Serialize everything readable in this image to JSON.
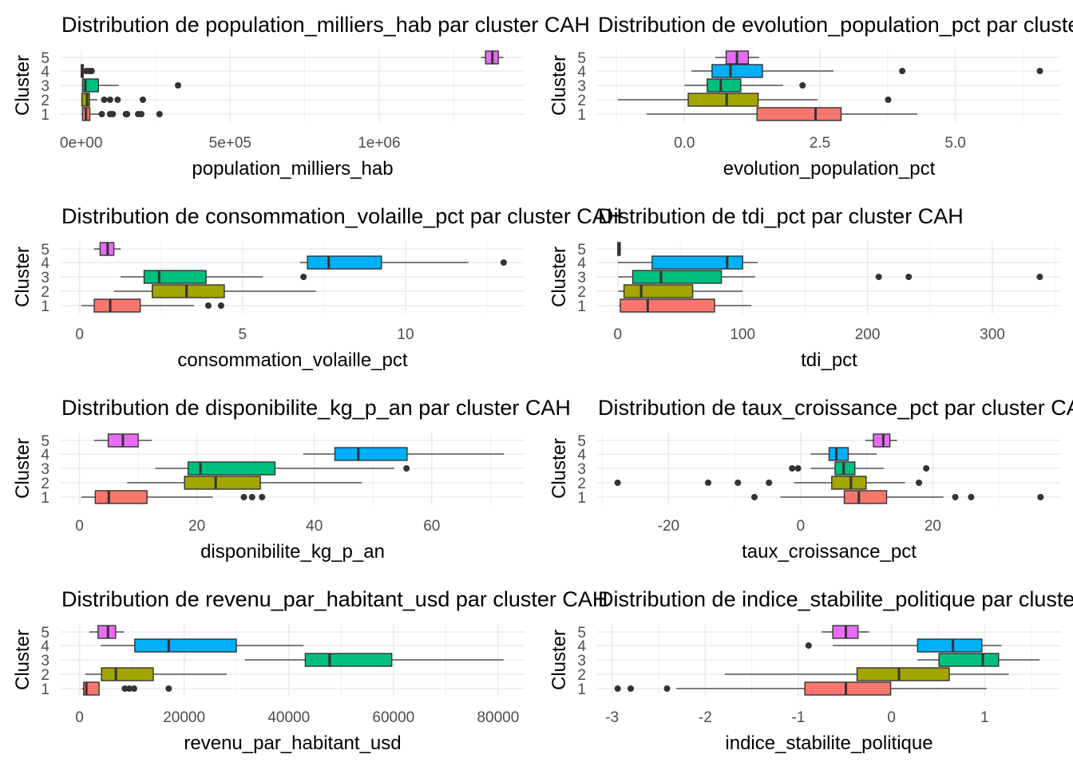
{
  "chart_data": [
    {
      "type": "boxplot",
      "title": "Distribution de population_milliers_hab par cluster CAH",
      "xlabel": "population_milliers_hab",
      "ylabel": "Cluster",
      "xlim": [
        -69000,
        1488000
      ],
      "xticks": [
        0,
        500000,
        1000000
      ],
      "xtick_labels": [
        "0e+00",
        "5e+05",
        "1e+06"
      ],
      "clusters": [
        {
          "cluster": "1",
          "whisker_low": 0,
          "q1": 4600,
          "median": 16000,
          "q3": 28800,
          "whisker_high": 60000,
          "outliers": [
            69000,
            96800,
            106000,
            150000,
            154000,
            191000,
            201600,
            262700
          ]
        },
        {
          "cluster": "2",
          "whisker_low": 0,
          "q1": 2300,
          "median": 19600,
          "q3": 27600,
          "whisker_high": 54000,
          "outliers": [
            77000,
            96800,
            122000,
            207000
          ]
        },
        {
          "cluster": "3",
          "whisker_low": 500,
          "q1": 4600,
          "median": 14000,
          "q3": 57600,
          "whisker_high": 125600,
          "outliers": [
            325000
          ]
        },
        {
          "cluster": "4",
          "whisker_low": 0,
          "q1": 0,
          "median": 2000,
          "q3": 7000,
          "whisker_high": 9000,
          "outliers": [
            17000,
            28000,
            35000
          ]
        },
        {
          "cluster": "5",
          "whisker_low": 1342000,
          "q1": 1357000,
          "median": 1380000,
          "q3": 1400000,
          "whisker_high": 1417000,
          "outliers": []
        }
      ]
    },
    {
      "type": "boxplot",
      "title": "Distribution de evolution_population_pct par cluster CAH",
      "xlabel": "evolution_population_pct",
      "ylabel": "Cluster",
      "xlim": [
        -1.61,
        6.95
      ],
      "xticks": [
        0,
        2.5,
        5
      ],
      "xtick_labels": [
        "0.0",
        "2.5",
        "5.0"
      ],
      "clusters": [
        {
          "cluster": "1",
          "whisker_low": -0.7,
          "q1": 1.34,
          "median": 2.42,
          "q3": 2.89,
          "whisker_high": 4.3,
          "outliers": []
        },
        {
          "cluster": "2",
          "whisker_low": -1.23,
          "q1": 0.07,
          "median": 0.78,
          "q3": 1.36,
          "whisker_high": 2.46,
          "outliers": [
            3.76
          ]
        },
        {
          "cluster": "3",
          "whisker_low": 0.0,
          "q1": 0.42,
          "median": 0.67,
          "q3": 1.04,
          "whisker_high": 1.82,
          "outliers": [
            2.18
          ]
        },
        {
          "cluster": "4",
          "whisker_low": 0.13,
          "q1": 0.51,
          "median": 0.85,
          "q3": 1.44,
          "whisker_high": 2.75,
          "outliers": [
            4.02,
            6.56
          ]
        },
        {
          "cluster": "5",
          "whisker_low": 0.57,
          "q1": 0.77,
          "median": 0.97,
          "q3": 1.18,
          "whisker_high": 1.38,
          "outliers": []
        }
      ]
    },
    {
      "type": "boxplot",
      "title": "Distribution de consommation_volaille_pct par cluster CAH",
      "xlabel": "consommation_volaille_pct",
      "ylabel": "Cluster",
      "xlim": [
        -0.58,
        13.65
      ],
      "xticks": [
        0,
        5,
        10
      ],
      "xtick_labels": [
        "0",
        "5",
        "10"
      ],
      "clusters": [
        {
          "cluster": "1",
          "whisker_low": 0.05,
          "q1": 0.45,
          "median": 0.94,
          "q3": 1.86,
          "whisker_high": 3.51,
          "outliers": [
            3.95,
            4.34
          ]
        },
        {
          "cluster": "2",
          "whisker_low": 1.06,
          "q1": 2.23,
          "median": 3.28,
          "q3": 4.44,
          "whisker_high": 7.25,
          "outliers": []
        },
        {
          "cluster": "3",
          "whisker_low": 1.26,
          "q1": 1.98,
          "median": 2.44,
          "q3": 3.88,
          "whisker_high": 5.62,
          "outliers": [
            6.87
          ]
        },
        {
          "cluster": "4",
          "whisker_low": 6.76,
          "q1": 6.99,
          "median": 7.64,
          "q3": 9.26,
          "whisker_high": 11.93,
          "outliers": [
            13.01
          ]
        },
        {
          "cluster": "5",
          "whisker_low": 0.44,
          "q1": 0.63,
          "median": 0.86,
          "q3": 1.05,
          "whisker_high": 1.26,
          "outliers": []
        }
      ]
    },
    {
      "type": "boxplot",
      "title": "Distribution de tdi_pct par cluster CAH",
      "xlabel": "tdi_pct",
      "ylabel": "Cluster",
      "xlim": [
        -16.5,
        355
      ],
      "xticks": [
        0,
        100,
        200,
        300
      ],
      "xtick_labels": [
        "0",
        "100",
        "200",
        "300"
      ],
      "clusters": [
        {
          "cluster": "1",
          "whisker_low": 1,
          "q1": 2,
          "median": 24,
          "q3": 77.5,
          "whisker_high": 107,
          "outliers": []
        },
        {
          "cluster": "2",
          "whisker_low": 0.5,
          "q1": 5,
          "median": 18.7,
          "q3": 60,
          "whisker_high": 100,
          "outliers": []
        },
        {
          "cluster": "3",
          "whisker_low": 0.5,
          "q1": 12,
          "median": 34.6,
          "q3": 83,
          "whisker_high": 110,
          "outliers": [
            209,
            233,
            338
          ]
        },
        {
          "cluster": "4",
          "whisker_low": 0,
          "q1": 27.5,
          "median": 87.6,
          "q3": 100,
          "whisker_high": 112,
          "outliers": []
        },
        {
          "cluster": "5",
          "whisker_low": 0,
          "q1": 0,
          "median": 1,
          "q3": 2,
          "whisker_high": 2,
          "outliers": []
        }
      ]
    },
    {
      "type": "boxplot",
      "title": "Distribution de disponibilite_kg_p_an par cluster CAH",
      "xlabel": "disponibilite_kg_p_an",
      "ylabel": "Cluster",
      "xlim": [
        -3.2,
        75.8
      ],
      "xticks": [
        0,
        20,
        40,
        60
      ],
      "xtick_labels": [
        "0",
        "20",
        "40",
        "60"
      ],
      "clusters": [
        {
          "cluster": "1",
          "whisker_low": 0.3,
          "q1": 2.7,
          "median": 5.0,
          "q3": 11.5,
          "whisker_high": 22.7,
          "outliers": [
            28.0,
            29.4,
            31.1
          ]
        },
        {
          "cluster": "2",
          "whisker_low": 8.1,
          "q1": 17.9,
          "median": 23.2,
          "q3": 30.8,
          "whisker_high": 48.1,
          "outliers": []
        },
        {
          "cluster": "3",
          "whisker_low": 12.9,
          "q1": 18.5,
          "median": 20.6,
          "q3": 33.3,
          "whisker_high": 53.6,
          "outliers": [
            55.7
          ]
        },
        {
          "cluster": "4",
          "whisker_low": 38.1,
          "q1": 43.5,
          "median": 47.5,
          "q3": 55.8,
          "whisker_high": 72.3,
          "outliers": []
        },
        {
          "cluster": "5",
          "whisker_low": 2.45,
          "q1": 4.9,
          "median": 7.4,
          "q3": 10.0,
          "whisker_high": 12.3,
          "outliers": []
        }
      ]
    },
    {
      "type": "boxplot",
      "title": "Distribution de taux_croissance_pct par cluster CAH",
      "xlabel": "taux_croissance_pct",
      "ylabel": "Cluster",
      "xlim": [
        -30.8,
        39.4
      ],
      "xticks": [
        -20,
        0,
        20
      ],
      "xtick_labels": [
        "-20",
        "0",
        "20"
      ],
      "clusters": [
        {
          "cluster": "1",
          "whisker_low": -3.1,
          "q1": 6.6,
          "median": 8.8,
          "q3": 13.0,
          "whisker_high": 21.6,
          "outliers": [
            -7.0,
            23.4,
            25.8,
            36.3
          ]
        },
        {
          "cluster": "2",
          "whisker_low": -1.0,
          "q1": 4.7,
          "median": 7.6,
          "q3": 9.9,
          "whisker_high": 15.8,
          "outliers": [
            -27.7,
            -14.0,
            -9.5,
            -4.8,
            17.9
          ]
        },
        {
          "cluster": "3",
          "whisker_low": 1.5,
          "q1": 5.2,
          "median": 6.5,
          "q3": 8.2,
          "whisker_high": 12.6,
          "outliers": [
            -1.3,
            -0.4,
            19.0
          ]
        },
        {
          "cluster": "4",
          "whisker_low": 1.5,
          "q1": 4.3,
          "median": 5.4,
          "q3": 7.2,
          "whisker_high": 11.5,
          "outliers": []
        },
        {
          "cluster": "5",
          "whisker_low": 9.8,
          "q1": 11.0,
          "median": 12.5,
          "q3": 13.5,
          "whisker_high": 14.6,
          "outliers": []
        }
      ]
    },
    {
      "type": "boxplot",
      "title": "Distribution de revenu_par_habitant_usd par cluster CAH",
      "xlabel": "revenu_par_habitant_usd",
      "ylabel": "Cluster",
      "xlim": [
        -3600,
        85050
      ],
      "xticks": [
        0,
        20000,
        40000,
        60000,
        80000
      ],
      "xtick_labels": [
        "0",
        "20000",
        "40000",
        "60000",
        "80000"
      ],
      "clusters": [
        {
          "cluster": "1",
          "whisker_low": 460,
          "q1": 800,
          "median": 1310,
          "q3": 3740,
          "whisker_high": 3740,
          "outliers": [
            8660,
            9510,
            10430,
            17050
          ]
        },
        {
          "cluster": "2",
          "whisker_low": 1110,
          "q1": 4200,
          "median": 6950,
          "q3": 14100,
          "whisker_high": 28130,
          "outliers": []
        },
        {
          "cluster": "3",
          "whisker_low": 31600,
          "q1": 43150,
          "median": 47800,
          "q3": 59670,
          "whisker_high": 81050,
          "outliers": []
        },
        {
          "cluster": "4",
          "whisker_low": 4070,
          "q1": 10560,
          "median": 17050,
          "q3": 29970,
          "whisker_high": 42820,
          "outliers": []
        },
        {
          "cluster": "5",
          "whisker_low": 1900,
          "q1": 3540,
          "median": 5440,
          "q3": 6890,
          "whisker_high": 8460,
          "outliers": []
        }
      ]
    },
    {
      "type": "boxplot",
      "title": "Distribution de indice_stabilite_politique par cluster CAH",
      "xlabel": "indice_stabilite_politique",
      "ylabel": "Cluster",
      "xlim": [
        -3.16,
        1.82
      ],
      "xticks": [
        -3,
        -2,
        -1,
        0,
        1
      ],
      "xtick_labels": [
        "-3",
        "-2",
        "-1",
        "0",
        "1"
      ],
      "clusters": [
        {
          "cluster": "1",
          "whisker_low": -2.31,
          "q1": -0.93,
          "median": -0.49,
          "q3": -0.01,
          "whisker_high": 1.02,
          "outliers": [
            -2.94,
            -2.8,
            -2.41
          ]
        },
        {
          "cluster": "2",
          "whisker_low": -1.79,
          "q1": -0.37,
          "median": 0.08,
          "q3": 0.62,
          "whisker_high": 1.26,
          "outliers": []
        },
        {
          "cluster": "3",
          "whisker_low": 0.28,
          "q1": 0.51,
          "median": 0.98,
          "q3": 1.15,
          "whisker_high": 1.59,
          "outliers": []
        },
        {
          "cluster": "4",
          "whisker_low": -0.63,
          "q1": 0.28,
          "median": 0.66,
          "q3": 0.97,
          "whisker_high": 1.18,
          "outliers": [
            -0.89
          ]
        },
        {
          "cluster": "5",
          "whisker_low": -0.75,
          "q1": -0.63,
          "median": -0.49,
          "q3": -0.36,
          "whisker_high": -0.24,
          "outliers": []
        }
      ]
    }
  ],
  "cluster_colors": {
    "1": "#F8766D",
    "2": "#A3A500",
    "3": "#00BF7D",
    "4": "#00B0F6",
    "5": "#E76BF3"
  }
}
